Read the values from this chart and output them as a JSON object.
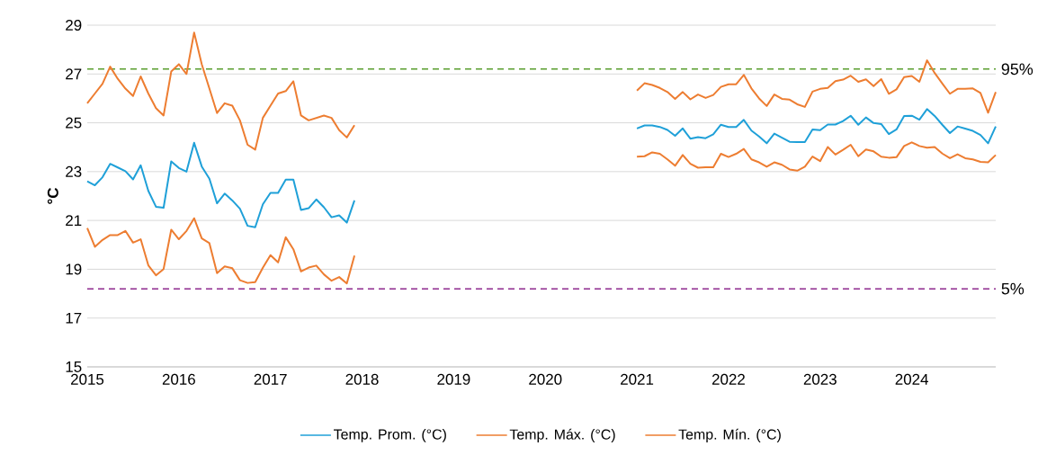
{
  "chart_data": {
    "type": "line",
    "ylabel": "°C",
    "x": [
      "2015-01",
      "2015-02",
      "2015-03",
      "2015-04",
      "2015-05",
      "2015-06",
      "2015-07",
      "2015-08",
      "2015-09",
      "2015-10",
      "2015-11",
      "2015-12",
      "2016-01",
      "2016-02",
      "2016-03",
      "2016-04",
      "2016-05",
      "2016-06",
      "2016-07",
      "2016-08",
      "2016-09",
      "2016-10",
      "2016-11",
      "2016-12",
      "2017-01",
      "2017-02",
      "2017-03",
      "2017-04",
      "2017-05",
      "2017-06",
      "2017-07",
      "2017-08",
      "2017-09",
      "2017-10",
      "2017-11",
      "2017-12",
      "2018-01",
      "2021-01",
      "2021-02",
      "2021-03",
      "2021-04",
      "2021-05",
      "2021-06",
      "2021-07",
      "2021-08",
      "2021-09",
      "2021-10",
      "2021-11",
      "2021-12",
      "2022-01",
      "2022-02",
      "2022-03",
      "2022-04",
      "2022-05",
      "2022-06",
      "2022-07",
      "2022-08",
      "2022-09",
      "2022-10",
      "2022-11",
      "2022-12",
      "2023-01",
      "2023-02",
      "2023-03",
      "2023-04",
      "2023-05",
      "2023-06",
      "2023-07",
      "2023-08",
      "2023-09",
      "2023-10",
      "2023-11",
      "2023-12",
      "2024-01",
      "2024-02",
      "2024-03",
      "2024-04",
      "2024-05",
      "2024-06",
      "2024-07",
      "2024-08",
      "2024-09",
      "2024-10",
      "2024-11",
      "2024-12"
    ],
    "series": [
      {
        "name": "Temp. Prom. (°C)",
        "color": "#1fa0d8",
        "values": [
          22.6,
          22.44,
          22.77,
          23.32,
          23.17,
          23.02,
          22.68,
          23.26,
          22.21,
          21.56,
          21.52,
          23.42,
          23.15,
          23.0,
          24.18,
          23.21,
          22.71,
          21.7,
          22.1,
          21.82,
          21.48,
          20.78,
          20.72,
          21.66,
          22.13,
          22.13,
          22.67,
          22.67,
          21.43,
          21.5,
          21.86,
          21.54,
          21.13,
          21.21,
          20.91,
          21.82,
          null,
          24.77,
          24.89,
          24.89,
          24.83,
          24.71,
          24.47,
          24.77,
          24.35,
          24.41,
          24.37,
          24.53,
          24.92,
          24.83,
          24.83,
          25.12,
          24.68,
          24.44,
          24.16,
          24.56,
          24.39,
          24.22,
          24.21,
          24.21,
          24.73,
          24.7,
          24.93,
          24.93,
          25.07,
          25.29,
          24.92,
          25.22,
          24.99,
          24.95,
          24.54,
          24.73,
          25.28,
          25.29,
          25.13,
          25.56,
          25.28,
          24.92,
          24.58,
          24.85,
          24.76,
          24.67,
          24.5,
          24.16,
          24.85
        ]
      },
      {
        "name": "Temp. Máx. (°C)",
        "color": "#ed7d31",
        "values": [
          25.8,
          26.2,
          26.6,
          27.3,
          26.8,
          26.4,
          26.1,
          26.9,
          26.2,
          25.6,
          25.3,
          27.1,
          27.4,
          27.0,
          28.7,
          27.4,
          26.4,
          25.4,
          25.8,
          25.7,
          25.1,
          24.1,
          23.9,
          25.2,
          25.7,
          26.2,
          26.3,
          26.7,
          25.3,
          25.1,
          25.2,
          25.3,
          25.2,
          24.7,
          24.4,
          24.9,
          null,
          26.32,
          26.62,
          26.55,
          26.43,
          26.26,
          25.98,
          26.26,
          25.96,
          26.16,
          26.02,
          26.14,
          26.47,
          26.58,
          26.58,
          26.96,
          26.41,
          26.0,
          25.69,
          26.16,
          25.98,
          25.95,
          25.76,
          25.65,
          26.28,
          26.39,
          26.43,
          26.71,
          26.77,
          26.93,
          26.68,
          26.78,
          26.5,
          26.79,
          26.19,
          26.37,
          26.87,
          26.92,
          26.68,
          27.56,
          27.04,
          26.61,
          26.19,
          26.39,
          26.39,
          26.41,
          26.22,
          25.41,
          26.26
        ]
      },
      {
        "name": "Temp. Mín. (°C)",
        "color": "#ed7d31",
        "values": [
          20.69,
          19.92,
          20.2,
          20.4,
          20.4,
          20.57,
          20.09,
          20.23,
          19.16,
          18.75,
          19.01,
          20.62,
          20.23,
          20.57,
          21.09,
          20.26,
          20.07,
          18.84,
          19.12,
          19.04,
          18.55,
          18.44,
          18.47,
          19.06,
          19.58,
          19.28,
          20.31,
          19.82,
          18.91,
          19.07,
          19.15,
          18.79,
          18.53,
          18.68,
          18.42,
          19.56,
          null,
          23.61,
          23.63,
          23.79,
          23.73,
          23.5,
          23.24,
          23.68,
          23.32,
          23.16,
          23.18,
          23.18,
          23.73,
          23.6,
          23.73,
          23.93,
          23.5,
          23.38,
          23.2,
          23.38,
          23.28,
          23.09,
          23.04,
          23.2,
          23.62,
          23.43,
          24.01,
          23.7,
          23.89,
          24.1,
          23.63,
          23.91,
          23.83,
          23.61,
          23.57,
          23.59,
          24.05,
          24.2,
          24.05,
          23.98,
          24.01,
          23.74,
          23.55,
          23.71,
          23.55,
          23.5,
          23.4,
          23.38,
          23.68
        ]
      }
    ],
    "xlim": [
      "2015-01",
      "2024-12"
    ],
    "xticks": [
      "2015",
      "2016",
      "2017",
      "2018",
      "2019",
      "2020",
      "2021",
      "2022",
      "2023",
      "2024"
    ],
    "ylim": [
      15,
      29
    ],
    "yticks": [
      15,
      17,
      19,
      21,
      23,
      25,
      27,
      29
    ],
    "ref_lines": [
      {
        "axis": "y",
        "value": 27.2,
        "color": "#5a9e2f",
        "line_style": "dashed"
      },
      {
        "axis": "y",
        "value": 18.2,
        "color": "#8e2a8e",
        "line_style": "dashed"
      }
    ],
    "annotations": [
      "95%",
      "5%"
    ],
    "grid": "y",
    "legend": "bottom"
  }
}
